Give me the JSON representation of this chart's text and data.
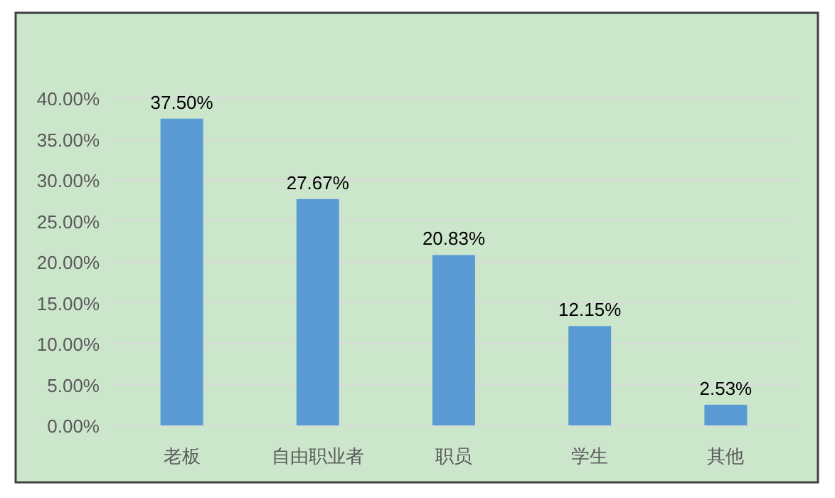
{
  "chart_data": {
    "type": "bar",
    "categories": [
      "老板",
      "自由职业者",
      "职员",
      "学生",
      "其他"
    ],
    "values": [
      37.5,
      27.67,
      20.83,
      12.15,
      2.53
    ],
    "value_labels": [
      "37.50%",
      "27.67%",
      "20.83%",
      "12.15%",
      "2.53%"
    ],
    "color": "#5b9bd5",
    "ylim": [
      0,
      40
    ],
    "yticks": [
      {
        "value": 0,
        "label": "0.00%"
      },
      {
        "value": 5,
        "label": "5.00%"
      },
      {
        "value": 10,
        "label": "10.00%"
      },
      {
        "value": 15,
        "label": "15.00%"
      },
      {
        "value": 20,
        "label": "20.00%"
      },
      {
        "value": 25,
        "label": "25.00%"
      },
      {
        "value": 30,
        "label": "30.00%"
      },
      {
        "value": 35,
        "label": "35.00%"
      },
      {
        "value": 40,
        "label": "40.00%"
      }
    ],
    "grid": "y"
  }
}
